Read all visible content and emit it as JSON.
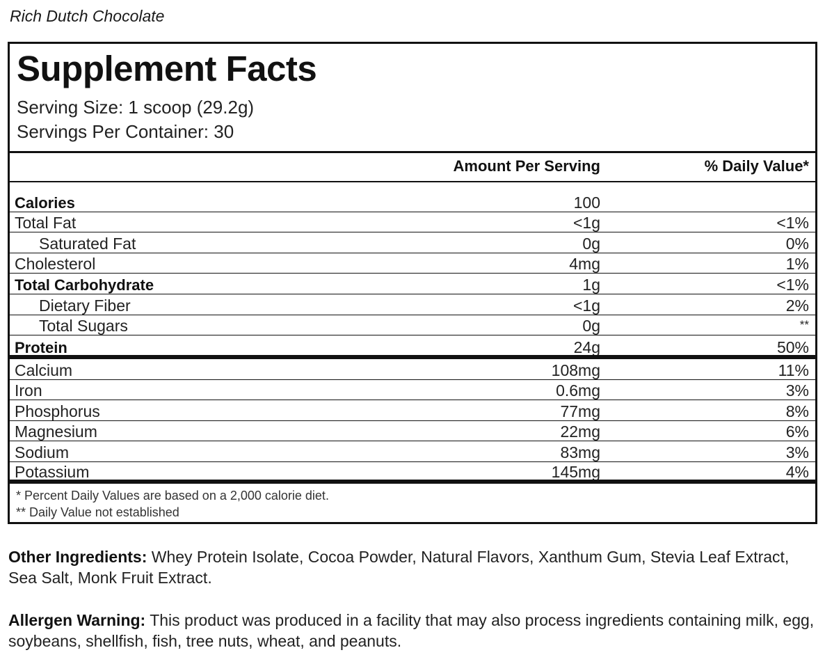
{
  "flavor": "Rich Dutch Chocolate",
  "panel": {
    "title": "Supplement Facts",
    "serving_size": "Serving Size: 1 scoop (29.2g)",
    "servings_per_container": "Servings Per Container: 30",
    "header_amount": "Amount Per Serving",
    "header_dv": "% Daily Value*",
    "nutrients": [
      {
        "name": "Calories",
        "amount": "100",
        "dv": ""
      },
      {
        "name": "Total Fat",
        "amount": "<1g",
        "dv": "<1%"
      },
      {
        "name": "Saturated Fat",
        "amount": "0g",
        "dv": "0%"
      },
      {
        "name": "Cholesterol",
        "amount": "4mg",
        "dv": "1%"
      },
      {
        "name": "Total Carbohydrate",
        "amount": "1g",
        "dv": "<1%"
      },
      {
        "name": "Dietary Fiber",
        "amount": "<1g",
        "dv": "2%"
      },
      {
        "name": "Total Sugars",
        "amount": "0g",
        "dv": "**"
      },
      {
        "name": "Protein",
        "amount": "24g",
        "dv": "50%"
      }
    ],
    "minerals": [
      {
        "name": "Calcium",
        "amount": "108mg",
        "dv": "11%"
      },
      {
        "name": "Iron",
        "amount": "0.6mg",
        "dv": "3%"
      },
      {
        "name": "Phosphorus",
        "amount": "77mg",
        "dv": "8%"
      },
      {
        "name": "Magnesium",
        "amount": "22mg",
        "dv": "6%"
      },
      {
        "name": "Sodium",
        "amount": "83mg",
        "dv": "3%"
      },
      {
        "name": "Potassium",
        "amount": "145mg",
        "dv": "4%"
      }
    ],
    "footnote_1": "* Percent Daily Values are based on a 2,000 calorie diet.",
    "footnote_2": "** Daily Value not established"
  },
  "other_ingredients": {
    "label": "Other Ingredients:",
    "text": " Whey Protein Isolate, Cocoa Powder, Natural Flavors, Xanthum Gum, Stevia Leaf Extract, Sea Salt, Monk Fruit Extract."
  },
  "allergen_warning": {
    "label": "Allergen Warning:",
    "text": " This product was produced in a facility that may also process ingredients containing milk, egg, soybeans, shellfish, fish, tree nuts, wheat, and peanuts."
  }
}
